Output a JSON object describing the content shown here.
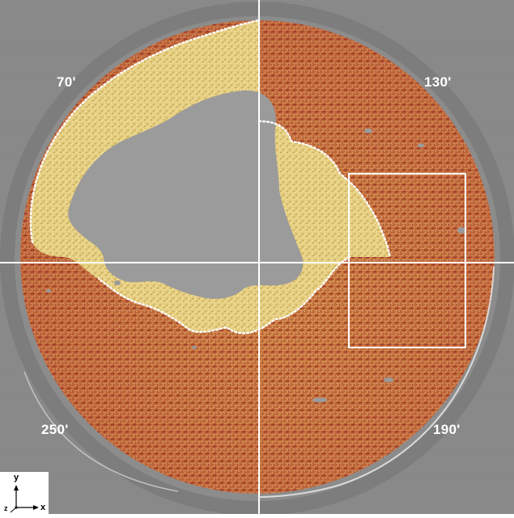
{
  "quadrant_labels": {
    "top_left": "70'",
    "top_right": "130'",
    "bottom_left": "250'",
    "bottom_right": "190'"
  },
  "axes": {
    "y": "y",
    "x": "x",
    "z": "z"
  },
  "colors": {
    "background_gray": "#8a8a8a",
    "core_gray": "#9a9a9a",
    "pale_yellow_region": "#e6cf7f",
    "dense_orange_region": "#c6743a",
    "red_speckle": "#a0242a",
    "dotted_boundary": "#ffffff",
    "crosshair": "#ffffff",
    "inset_box": "#ffffff"
  }
}
